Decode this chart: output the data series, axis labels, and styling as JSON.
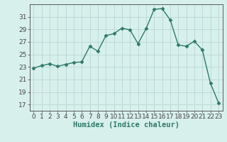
{
  "x": [
    0,
    1,
    2,
    3,
    4,
    5,
    6,
    7,
    8,
    9,
    10,
    11,
    12,
    13,
    14,
    15,
    16,
    17,
    18,
    19,
    20,
    21,
    22,
    23
  ],
  "y": [
    22.8,
    23.2,
    23.5,
    23.1,
    23.4,
    23.7,
    23.8,
    26.3,
    25.5,
    28.0,
    28.3,
    29.2,
    28.9,
    26.7,
    29.1,
    32.2,
    32.3,
    30.5,
    26.5,
    26.3,
    27.1,
    25.7,
    20.4,
    17.3
  ],
  "line_color": "#2d7a6a",
  "marker": "D",
  "marker_size": 2.5,
  "bg_color": "#d8f0ec",
  "grid_color": "#b8d8d4",
  "xlabel": "Humidex (Indice chaleur)",
  "ylabel_ticks": [
    17,
    19,
    21,
    23,
    25,
    27,
    29,
    31
  ],
  "xtick_labels": [
    "0",
    "1",
    "2",
    "3",
    "4",
    "5",
    "6",
    "7",
    "8",
    "9",
    "10",
    "11",
    "12",
    "13",
    "14",
    "15",
    "16",
    "17",
    "18",
    "19",
    "20",
    "21",
    "22",
    "23"
  ],
  "ylim": [
    16.0,
    33.0
  ],
  "xlim": [
    -0.5,
    23.5
  ],
  "axis_color": "#444444",
  "tick_fontsize": 6.5,
  "label_fontsize": 7.5
}
